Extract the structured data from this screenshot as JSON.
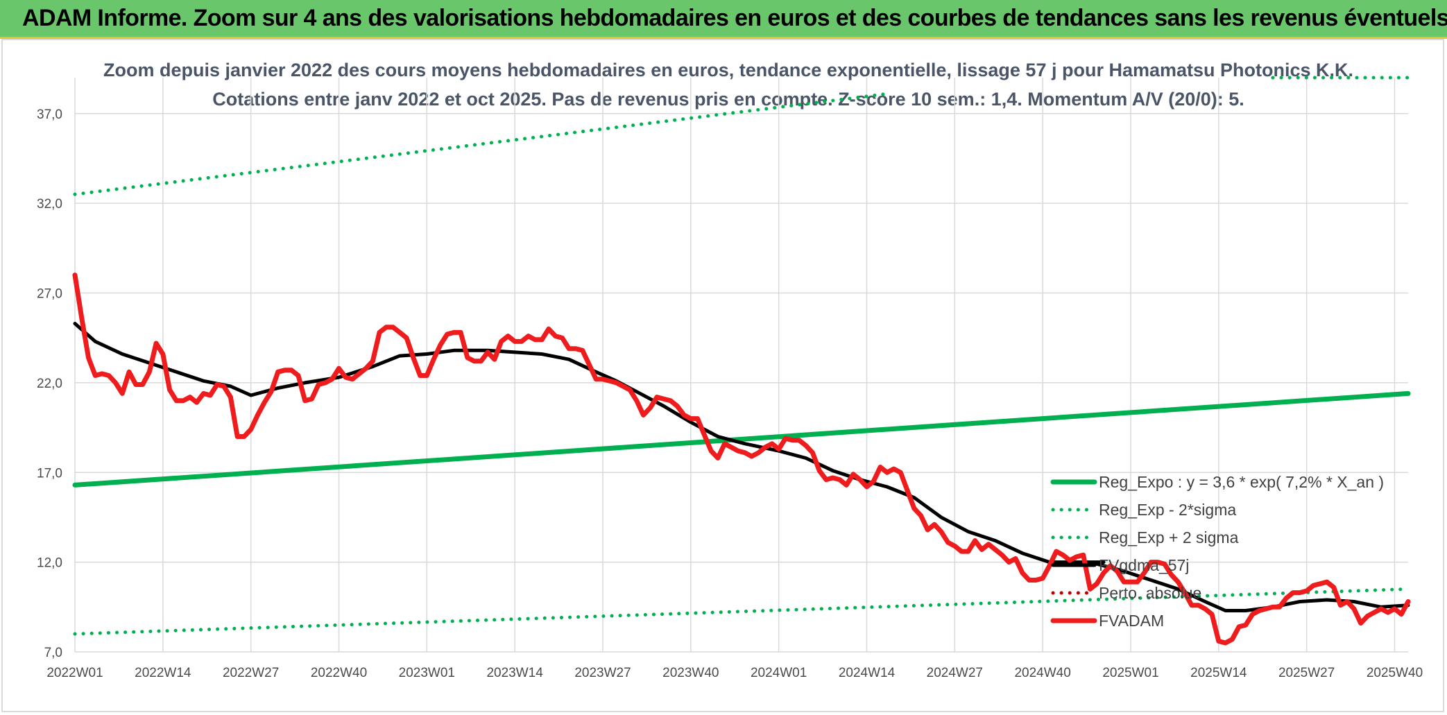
{
  "banner": {
    "title": "ADAM Informe. Zoom sur 4 ans des valorisations hebdomadaires en euros et des courbes de tendances sans les revenus éventuels"
  },
  "chart_data": {
    "type": "line",
    "title_line1": "Zoom depuis janvier 2022 des cours moyens hebdomadaires en euros, tendance exponentielle, lissage 57 j pour Hamamatsu Photonics K.K.",
    "title_line2": "Cotations entre janv 2022 et oct 2025. Pas de revenus pris en compte. Z-score 10 sem.: 1,4. Momentum A/V (20/0): 5.",
    "xlabel": "",
    "ylabel": "",
    "ylim": [
      7,
      39
    ],
    "yticks": [
      "7,0",
      "12,0",
      "17,0",
      "22,0",
      "27,0",
      "32,0",
      "37,0"
    ],
    "ytick_values": [
      7,
      12,
      17,
      22,
      27,
      32,
      37
    ],
    "xlim": [
      1,
      198
    ],
    "xticks": [
      "2022W01",
      "2022W14",
      "2022W27",
      "2022W40",
      "2023W01",
      "2023W14",
      "2023W27",
      "2023W40",
      "2024W01",
      "2024W14",
      "2024W27",
      "2024W40",
      "2025W01",
      "2025W14",
      "2025W27",
      "2025W40"
    ],
    "xtick_positions": [
      1,
      14,
      27,
      40,
      53,
      66,
      79,
      92,
      105,
      118,
      131,
      144,
      157,
      170,
      183,
      196
    ],
    "grid": true,
    "legend_position": "bottom-right",
    "series": [
      {
        "name": "Reg_Expo : y = 3,6 * exp( 7,2% *  X_an )",
        "color": "#00b050",
        "style": "solid",
        "points": [
          [
            1,
            16.3
          ],
          [
            198,
            21.4
          ]
        ]
      },
      {
        "name": "Reg_Exp - 2*sigma",
        "color": "#00b050",
        "style": "dotted",
        "points": [
          [
            1,
            8.0
          ],
          [
            198,
            10.5
          ]
        ]
      },
      {
        "name": "Reg_Exp + 2 sigma",
        "color": "#00b050",
        "style": "dotted",
        "points": [
          [
            1,
            32.5
          ],
          [
            121,
            38.1
          ]
        ],
        "segment2": [
          [
            178,
            39.0
          ],
          [
            198,
            39.0
          ]
        ]
      },
      {
        "name": "FVgdma_57j",
        "color": "#000000",
        "style": "solid",
        "points": [
          [
            1,
            25.3
          ],
          [
            4,
            24.3
          ],
          [
            8,
            23.6
          ],
          [
            12,
            23.1
          ],
          [
            16,
            22.6
          ],
          [
            20,
            22.1
          ],
          [
            24,
            21.8
          ],
          [
            27,
            21.3
          ],
          [
            31,
            21.7
          ],
          [
            35,
            22.0
          ],
          [
            40,
            22.3
          ],
          [
            45,
            22.9
          ],
          [
            49,
            23.5
          ],
          [
            53,
            23.6
          ],
          [
            57,
            23.8
          ],
          [
            62,
            23.8
          ],
          [
            66,
            23.7
          ],
          [
            70,
            23.6
          ],
          [
            74,
            23.3
          ],
          [
            78,
            22.6
          ],
          [
            81,
            22.1
          ],
          [
            84,
            21.5
          ],
          [
            88,
            20.7
          ],
          [
            92,
            19.8
          ],
          [
            96,
            19.0
          ],
          [
            100,
            18.6
          ],
          [
            105,
            18.2
          ],
          [
            109,
            17.8
          ],
          [
            113,
            17.1
          ],
          [
            117,
            16.6
          ],
          [
            121,
            16.2
          ],
          [
            125,
            15.6
          ],
          [
            129,
            14.5
          ],
          [
            133,
            13.7
          ],
          [
            137,
            13.2
          ],
          [
            141,
            12.5
          ],
          [
            145,
            12.0
          ],
          [
            149,
            12.0
          ],
          [
            153,
            12.0
          ]
        ],
        "segment2": [
          [
            152,
            11.9
          ],
          [
            156,
            11.5
          ],
          [
            160,
            11.0
          ],
          [
            164,
            10.5
          ],
          [
            168,
            9.8
          ],
          [
            171,
            9.3
          ],
          [
            174,
            9.3
          ],
          [
            178,
            9.5
          ],
          [
            182,
            9.8
          ],
          [
            186,
            9.9
          ],
          [
            190,
            9.8
          ],
          [
            194,
            9.5
          ],
          [
            198,
            9.6
          ]
        ]
      },
      {
        "name": "Perto. absolue",
        "color": "#c00000",
        "style": "dotted",
        "points": []
      },
      {
        "name": "FVADAM",
        "color": "#ee1c1c",
        "style": "solid",
        "points": [
          [
            1,
            28.0
          ],
          [
            2,
            25.6
          ],
          [
            3,
            23.4
          ],
          [
            4,
            22.4
          ],
          [
            5,
            22.5
          ],
          [
            6,
            22.4
          ],
          [
            7,
            22.0
          ],
          [
            8,
            21.4
          ],
          [
            9,
            22.6
          ],
          [
            10,
            21.9
          ],
          [
            11,
            21.9
          ],
          [
            12,
            22.6
          ],
          [
            13,
            24.2
          ],
          [
            14,
            23.6
          ],
          [
            15,
            21.6
          ],
          [
            16,
            21.0
          ],
          [
            17,
            21.0
          ],
          [
            18,
            21.2
          ],
          [
            19,
            20.9
          ],
          [
            20,
            21.4
          ],
          [
            21,
            21.3
          ],
          [
            22,
            21.9
          ],
          [
            23,
            21.8
          ],
          [
            24,
            21.2
          ],
          [
            25,
            19.0
          ],
          [
            26,
            19.0
          ],
          [
            27,
            19.4
          ],
          [
            28,
            20.2
          ],
          [
            29,
            20.9
          ],
          [
            30,
            21.5
          ],
          [
            31,
            22.6
          ],
          [
            32,
            22.7
          ],
          [
            33,
            22.7
          ],
          [
            34,
            22.4
          ],
          [
            35,
            21.0
          ],
          [
            36,
            21.1
          ],
          [
            37,
            21.9
          ],
          [
            38,
            22.0
          ],
          [
            39,
            22.2
          ],
          [
            40,
            22.8
          ],
          [
            41,
            22.3
          ],
          [
            42,
            22.2
          ],
          [
            43,
            22.5
          ],
          [
            44,
            22.8
          ],
          [
            45,
            23.2
          ],
          [
            46,
            24.8
          ],
          [
            47,
            25.1
          ],
          [
            48,
            25.1
          ],
          [
            49,
            24.8
          ],
          [
            50,
            24.5
          ],
          [
            51,
            23.4
          ],
          [
            52,
            22.4
          ],
          [
            53,
            22.4
          ],
          [
            54,
            23.3
          ],
          [
            55,
            24.1
          ],
          [
            56,
            24.7
          ],
          [
            57,
            24.8
          ],
          [
            58,
            24.8
          ],
          [
            59,
            23.4
          ],
          [
            60,
            23.2
          ],
          [
            61,
            23.2
          ],
          [
            62,
            23.7
          ],
          [
            63,
            23.3
          ],
          [
            64,
            24.3
          ],
          [
            65,
            24.6
          ],
          [
            66,
            24.3
          ],
          [
            67,
            24.3
          ],
          [
            68,
            24.6
          ],
          [
            69,
            24.4
          ],
          [
            70,
            24.4
          ],
          [
            71,
            25.0
          ],
          [
            72,
            24.6
          ],
          [
            73,
            24.5
          ],
          [
            74,
            23.9
          ],
          [
            75,
            23.9
          ],
          [
            76,
            23.8
          ],
          [
            77,
            23.0
          ],
          [
            78,
            22.2
          ],
          [
            79,
            22.2
          ],
          [
            80,
            22.1
          ],
          [
            81,
            22.0
          ],
          [
            82,
            21.8
          ],
          [
            83,
            21.6
          ],
          [
            84,
            21.0
          ],
          [
            85,
            20.2
          ],
          [
            86,
            20.6
          ],
          [
            87,
            21.2
          ],
          [
            88,
            21.1
          ],
          [
            89,
            21.0
          ],
          [
            90,
            20.7
          ],
          [
            91,
            20.2
          ],
          [
            92,
            20.0
          ],
          [
            93,
            20.0
          ],
          [
            94,
            19.1
          ],
          [
            95,
            18.2
          ],
          [
            96,
            17.8
          ],
          [
            97,
            18.6
          ],
          [
            98,
            18.4
          ],
          [
            99,
            18.2
          ],
          [
            100,
            18.1
          ],
          [
            101,
            17.9
          ],
          [
            102,
            18.1
          ],
          [
            103,
            18.4
          ],
          [
            104,
            18.6
          ],
          [
            105,
            18.3
          ],
          [
            106,
            18.9
          ],
          [
            107,
            18.8
          ],
          [
            108,
            18.8
          ],
          [
            109,
            18.5
          ],
          [
            110,
            18.1
          ],
          [
            111,
            17.1
          ],
          [
            112,
            16.6
          ],
          [
            113,
            16.7
          ],
          [
            114,
            16.6
          ],
          [
            115,
            16.3
          ],
          [
            116,
            16.9
          ],
          [
            117,
            16.6
          ],
          [
            118,
            16.2
          ],
          [
            119,
            16.5
          ],
          [
            120,
            17.3
          ],
          [
            121,
            17.0
          ],
          [
            122,
            17.2
          ],
          [
            123,
            17.0
          ],
          [
            124,
            16.0
          ],
          [
            125,
            15.0
          ],
          [
            126,
            14.6
          ],
          [
            127,
            13.8
          ],
          [
            128,
            14.1
          ],
          [
            129,
            13.7
          ],
          [
            130,
            13.1
          ],
          [
            131,
            12.9
          ],
          [
            132,
            12.6
          ],
          [
            133,
            12.6
          ],
          [
            134,
            13.2
          ],
          [
            135,
            12.7
          ],
          [
            136,
            13.0
          ],
          [
            137,
            12.7
          ],
          [
            138,
            12.4
          ],
          [
            139,
            12.0
          ],
          [
            140,
            12.2
          ],
          [
            141,
            11.4
          ],
          [
            142,
            11.0
          ],
          [
            143,
            11.0
          ],
          [
            144,
            11.1
          ],
          [
            145,
            11.8
          ],
          [
            146,
            12.6
          ],
          [
            147,
            12.4
          ],
          [
            148,
            12.1
          ],
          [
            149,
            12.3
          ],
          [
            150,
            12.4
          ],
          [
            151,
            10.5
          ],
          [
            152,
            10.8
          ],
          [
            153,
            11.4
          ],
          [
            154,
            11.8
          ],
          [
            155,
            11.5
          ],
          [
            156,
            10.9
          ],
          [
            157,
            10.9
          ],
          [
            158,
            10.9
          ],
          [
            159,
            11.4
          ],
          [
            160,
            12.0
          ],
          [
            161,
            12.0
          ],
          [
            162,
            11.9
          ],
          [
            163,
            11.3
          ],
          [
            164,
            10.9
          ],
          [
            165,
            10.3
          ],
          [
            166,
            9.6
          ],
          [
            167,
            9.6
          ],
          [
            168,
            9.4
          ],
          [
            169,
            9.1
          ],
          [
            170,
            7.6
          ],
          [
            171,
            7.5
          ],
          [
            172,
            7.7
          ],
          [
            173,
            8.4
          ],
          [
            174,
            8.5
          ],
          [
            175,
            9.1
          ],
          [
            176,
            9.3
          ],
          [
            177,
            9.4
          ],
          [
            178,
            9.5
          ],
          [
            179,
            9.5
          ],
          [
            180,
            10.0
          ],
          [
            181,
            10.3
          ],
          [
            182,
            10.3
          ],
          [
            183,
            10.4
          ],
          [
            184,
            10.7
          ],
          [
            185,
            10.8
          ],
          [
            186,
            10.9
          ],
          [
            187,
            10.6
          ],
          [
            188,
            9.6
          ],
          [
            189,
            9.8
          ],
          [
            190,
            9.4
          ],
          [
            191,
            8.6
          ],
          [
            192,
            9.0
          ],
          [
            193,
            9.2
          ],
          [
            194,
            9.4
          ],
          [
            195,
            9.2
          ],
          [
            196,
            9.4
          ],
          [
            197,
            9.1
          ],
          [
            198,
            9.8
          ]
        ]
      }
    ]
  }
}
